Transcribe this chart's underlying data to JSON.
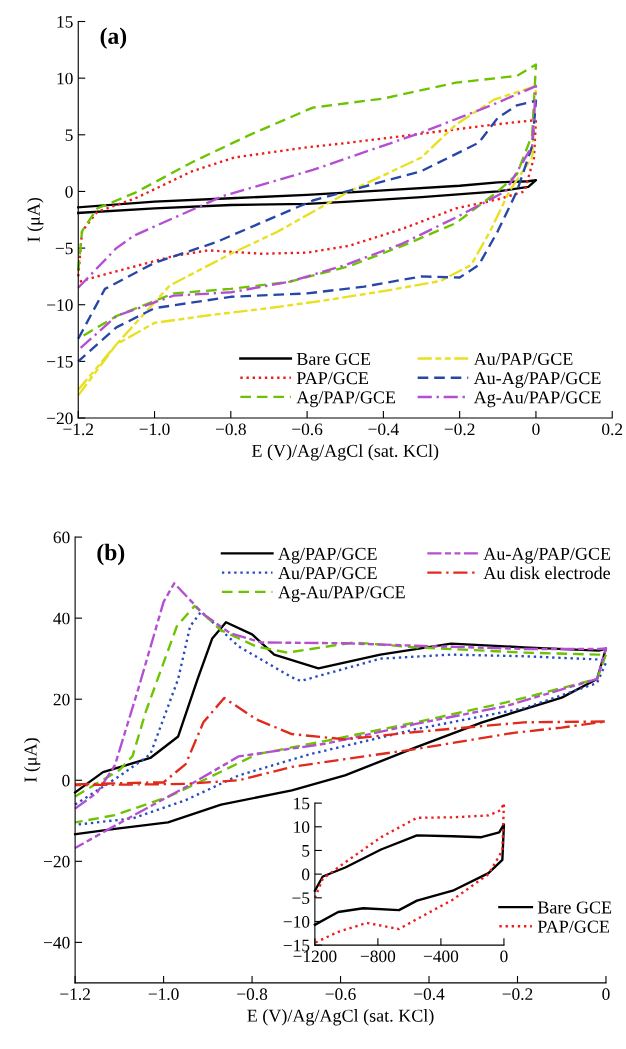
{
  "chart_data": [
    {
      "type": "line",
      "annotations": [
        "(a)"
      ],
      "xlabel": "E (V)/Ag/AgCl (sat. KCl)",
      "ylabel": "I (μA)",
      "xlim": [
        -1.2,
        0.2
      ],
      "ylim": [
        -20,
        15
      ],
      "xticks": [
        {
          "value": -1.2,
          "label": "−1.2"
        },
        {
          "value": -1.0,
          "label": "−1.0"
        },
        {
          "value": -0.8,
          "label": "−0.8"
        },
        {
          "value": -0.6,
          "label": "−0.6"
        },
        {
          "value": -0.4,
          "label": "−0.4"
        },
        {
          "value": -0.2,
          "label": "−0.2"
        },
        0,
        0.2
      ],
      "yticks": [
        {
          "value": -20,
          "label": "−20"
        },
        {
          "value": -15,
          "label": "−15"
        },
        {
          "value": -10,
          "label": "−10"
        },
        {
          "value": -5,
          "label": "−5"
        },
        0,
        5,
        10,
        15
      ],
      "legend": "bottom right",
      "series": [
        {
          "name": "Bare GCE",
          "color": "#000000",
          "line_style": "solid",
          "x": [
            -1.2,
            -1.0,
            -0.8,
            -0.6,
            -0.4,
            -0.2,
            -0.1,
            -0.02,
            0,
            -0.02,
            -0.1,
            -0.3,
            -0.49,
            -0.6,
            -0.8,
            -1.0,
            -1.2
          ],
          "values": [
            -1.4,
            -0.9,
            -0.6,
            -0.3,
            0.1,
            0.5,
            0.8,
            0.9,
            1.0,
            0.4,
            0.0,
            -0.5,
            -0.9,
            -1.1,
            -1.2,
            -1.5,
            -1.9
          ]
        },
        {
          "name": "PAP/GCE",
          "color": "#ee1c1c",
          "line_style": "dotted",
          "x": [
            -1.2,
            -1.19,
            -1.15,
            -1.05,
            -0.9,
            -0.79,
            -0.6,
            -0.49,
            -0.3,
            -0.11,
            0,
            -0.005,
            -0.03,
            -0.1,
            -0.21,
            -0.35,
            -0.49,
            -0.6,
            -0.72,
            -0.86,
            -0.95,
            -1.05,
            -1.15,
            -1.2
          ],
          "values": [
            -7.5,
            -3.5,
            -1.8,
            -0.6,
            1.8,
            3.0,
            3.9,
            4.3,
            5.1,
            5.9,
            6.3,
            3.0,
            0.0,
            -0.7,
            -1.5,
            -3.3,
            -4.8,
            -5.4,
            -5.5,
            -5.2,
            -5.7,
            -6.6,
            -7.5,
            -8.0
          ]
        },
        {
          "name": "Ag/PAP/GCE",
          "color": "#6cc400",
          "line_style": "dashed",
          "x": [
            -1.2,
            -1.19,
            -1.15,
            -1.05,
            -0.9,
            -0.75,
            -0.585,
            -0.4,
            -0.21,
            -0.05,
            0,
            -0.01,
            -0.05,
            -0.1,
            -0.21,
            -0.35,
            -0.49,
            -0.65,
            -0.8,
            -0.95,
            -1.1,
            -1.2
          ],
          "values": [
            -7.0,
            -3.5,
            -1.5,
            -0.1,
            2.6,
            5.0,
            7.4,
            8.2,
            9.6,
            10.2,
            11.2,
            5.0,
            1.5,
            0.0,
            -2.8,
            -4.8,
            -6.6,
            -8.0,
            -8.6,
            -9.0,
            -11.0,
            -13.0
          ]
        },
        {
          "name": "Au/PAP/GCE",
          "color": "#e8e020",
          "line_style": "dashdotdot",
          "x": [
            -1.2,
            -1.1,
            -0.96,
            -0.8,
            -0.68,
            -0.49,
            -0.3,
            -0.21,
            -0.11,
            0,
            -0.01,
            -0.07,
            -0.12,
            -0.17,
            -0.25,
            -0.4,
            -0.55,
            -0.7,
            -0.85,
            -1.0,
            -1.1,
            -1.2
          ],
          "values": [
            -18,
            -13.5,
            -8.3,
            -5.5,
            -3.6,
            0.0,
            3.0,
            5.9,
            8.1,
            9.3,
            3,
            0,
            -3.5,
            -6.5,
            -7.9,
            -8.8,
            -9.6,
            -10.3,
            -10.9,
            -11.6,
            -13.5,
            -17.5
          ]
        },
        {
          "name": "Au-Ag/PAP/GCE",
          "color": "#2747a8",
          "line_style": "dashed",
          "x": [
            -1.2,
            -1.13,
            -1.0,
            -0.84,
            -0.585,
            -0.3,
            -0.15,
            -0.1,
            -0.05,
            0,
            -0.01,
            -0.05,
            -0.1,
            -0.15,
            -0.2,
            -0.3,
            -0.45,
            -0.6,
            -0.8,
            -1.0,
            -1.1,
            -1.2
          ],
          "values": [
            -13,
            -8.6,
            -6.3,
            -4.5,
            -0.8,
            1.8,
            4.3,
            6.5,
            7.6,
            8.0,
            4,
            0,
            -3.5,
            -6.5,
            -7.6,
            -7.5,
            -8.4,
            -9.0,
            -9.3,
            -10.3,
            -12,
            -15
          ]
        },
        {
          "name": "Ag-Au/PAP/GCE",
          "color": "#b34fd0",
          "line_style": "dashdot",
          "x": [
            -1.2,
            -1.1,
            -1.054,
            -0.82,
            -0.585,
            -0.3,
            -0.11,
            0,
            -0.01,
            -0.08,
            -0.21,
            -0.35,
            -0.5,
            -0.65,
            -0.8,
            -0.95,
            -1.1,
            -1.2
          ],
          "values": [
            -8.5,
            -5.0,
            -3.9,
            -0.4,
            1.9,
            5.2,
            7.7,
            9.3,
            4,
            0,
            -2.3,
            -4.6,
            -6.5,
            -8.0,
            -8.9,
            -9.2,
            -11.0,
            -14.0
          ]
        }
      ]
    },
    {
      "type": "line",
      "annotations": [
        "(b)"
      ],
      "xlabel": "E (V)/Ag/AgCl (sat. KCl)",
      "ylabel": "I (μA)",
      "xlim": [
        -1.2,
        0
      ],
      "ylim": [
        -50,
        60
      ],
      "xticks": [
        {
          "value": -1.2,
          "label": "−1.2"
        },
        {
          "value": -1.0,
          "label": "−1.0"
        },
        {
          "value": -0.8,
          "label": "−0.8"
        },
        {
          "value": -0.6,
          "label": "−0.6"
        },
        {
          "value": -0.4,
          "label": "−0.4"
        },
        {
          "value": -0.2,
          "label": "−0.2"
        },
        0
      ],
      "yticks": [
        {
          "value": -40,
          "label": "−40"
        },
        {
          "value": -20,
          "label": "−20"
        },
        0,
        20,
        40,
        60
      ],
      "legend": "top",
      "series": [
        {
          "name": "Ag/PAP/GCE",
          "color": "#000000",
          "line_style": "solid",
          "x": [
            -1.2,
            -1.137,
            -1.03,
            -0.967,
            -0.923,
            -0.89,
            -0.859,
            -0.8,
            -0.75,
            -0.65,
            -0.51,
            -0.35,
            -0.185,
            -0.016,
            0,
            -0.02,
            -0.1,
            -0.28,
            -0.43,
            -0.59,
            -0.71,
            -0.87,
            -0.99,
            -1.11,
            -1.2
          ],
          "values": [
            -3,
            2,
            5.5,
            10.8,
            25,
            35,
            39,
            36,
            31,
            27.6,
            31,
            33.7,
            32.8,
            32,
            32.5,
            25,
            20.4,
            14.3,
            8.1,
            1.2,
            -2.5,
            -6,
            -10.4,
            -12,
            -13.3
          ]
        },
        {
          "name": "Au/PAP/GCE",
          "color": "#2a4bbf",
          "line_style": "dotted",
          "x": [
            -1.2,
            -1.1,
            -1.03,
            -0.967,
            -0.94,
            -0.915,
            -0.83,
            -0.71,
            -0.69,
            -0.51,
            -0.35,
            -0.185,
            -0.016,
            0,
            -0.02,
            -0.185,
            -0.43,
            -0.67,
            -0.83,
            -0.95,
            -1.07,
            -1.2
          ],
          "values": [
            -6,
            1,
            6.4,
            25,
            38,
            41.6,
            33,
            25.4,
            24.5,
            30,
            31,
            30.6,
            29.8,
            29,
            24,
            17.8,
            12.6,
            6.4,
            1.2,
            -4.9,
            -9.4,
            -11
          ]
        },
        {
          "name": "Ag-Au/PAP/GCE",
          "color": "#6cc400",
          "line_style": "dashed",
          "x": [
            -1.2,
            -1.1,
            -1.07,
            -1.04,
            -0.97,
            -0.93,
            -0.87,
            -0.79,
            -0.72,
            -0.57,
            -0.43,
            -0.185,
            -0.016,
            0,
            -0.02,
            -0.226,
            -0.43,
            -0.63,
            -0.79,
            -0.91,
            -0.99,
            -1.11,
            -1.2
          ],
          "values": [
            -4,
            2.5,
            6,
            17,
            38,
            43,
            37,
            33,
            31.5,
            34,
            32.8,
            31.5,
            31,
            31,
            25,
            19.2,
            14.3,
            9.8,
            6.4,
            0,
            -4.1,
            -8.6,
            -10.4
          ]
        },
        {
          "name": "Au-Ag/PAP/GCE",
          "color": "#b34fd0",
          "line_style": "dashdotdot",
          "x": [
            -1.2,
            -1.15,
            -1.11,
            -1.056,
            -1.0,
            -0.976,
            -0.91,
            -0.85,
            -0.78,
            -0.59,
            -0.43,
            -0.185,
            -0.016,
            0,
            -0.02,
            -0.226,
            -0.43,
            -0.63,
            -0.83,
            -0.95,
            -1.07,
            -1.2
          ],
          "values": [
            -7,
            -3,
            3.7,
            23,
            44,
            48.6,
            41,
            36.3,
            34,
            33.8,
            33.2,
            32.4,
            32.4,
            32.5,
            25,
            18.3,
            13.9,
            9.1,
            5.9,
            -1.7,
            -8.8,
            -16.7
          ]
        },
        {
          "name": "Au disk electrode",
          "color": "#e02a1c",
          "line_style": "dashdot",
          "x": [
            -1.2,
            -1.0,
            -0.95,
            -0.91,
            -0.863,
            -0.79,
            -0.71,
            -0.59,
            -0.43,
            -0.185,
            0,
            -0.1,
            -0.209,
            -0.43,
            -0.59,
            -0.71,
            -0.83,
            -0.95,
            -1.2
          ],
          "values": [
            -1,
            -0.5,
            4,
            14.3,
            20.3,
            15,
            11.4,
            10.1,
            11.9,
            14.3,
            14.5,
            13,
            11.7,
            7.7,
            5.2,
            3.3,
            0,
            -0.9,
            -1.2
          ]
        }
      ]
    },
    {
      "type": "line",
      "xlim": [
        -1200,
        0
      ],
      "ylim": [
        -15,
        15
      ],
      "xticks": [
        {
          "value": -1200,
          "label": "−1200"
        },
        {
          "value": -800,
          "label": "−800"
        },
        {
          "value": -400,
          "label": "−400"
        },
        0
      ],
      "yticks": [
        {
          "value": -15,
          "label": "−15"
        },
        {
          "value": -10,
          "label": "−10"
        },
        {
          "value": -5,
          "label": "−5"
        },
        0,
        5,
        10,
        15
      ],
      "legend": "right",
      "series": [
        {
          "name": "Bare GCE",
          "color": "#000000",
          "line_style": "solid",
          "x": [
            -1200,
            -1150,
            -1007,
            -780,
            -552,
            -325,
            -143,
            -30,
            0,
            -10,
            -98,
            -325,
            -552,
            -666,
            -893,
            -1052,
            -1200
          ],
          "values": [
            -3.5,
            -0.5,
            1.4,
            5.2,
            8.2,
            8.0,
            7.8,
            8.8,
            10.5,
            3,
            0.2,
            -3.5,
            -5.6,
            -7.6,
            -7.2,
            -8.0,
            -10.7
          ]
        },
        {
          "name": "PAP/GCE",
          "color": "#ee1c1c",
          "line_style": "dotted",
          "x": [
            -1200,
            -1150,
            -1007,
            -780,
            -552,
            -325,
            -98,
            -20,
            0,
            -10,
            -98,
            -325,
            -552,
            -666,
            -870,
            -1052,
            -1200
          ],
          "values": [
            -5,
            -1,
            2.5,
            7.8,
            11.9,
            12,
            12.4,
            13.5,
            15,
            5,
            0,
            -5.4,
            -9.5,
            -11.6,
            -10.3,
            -12.2,
            -14.5
          ]
        }
      ]
    }
  ]
}
